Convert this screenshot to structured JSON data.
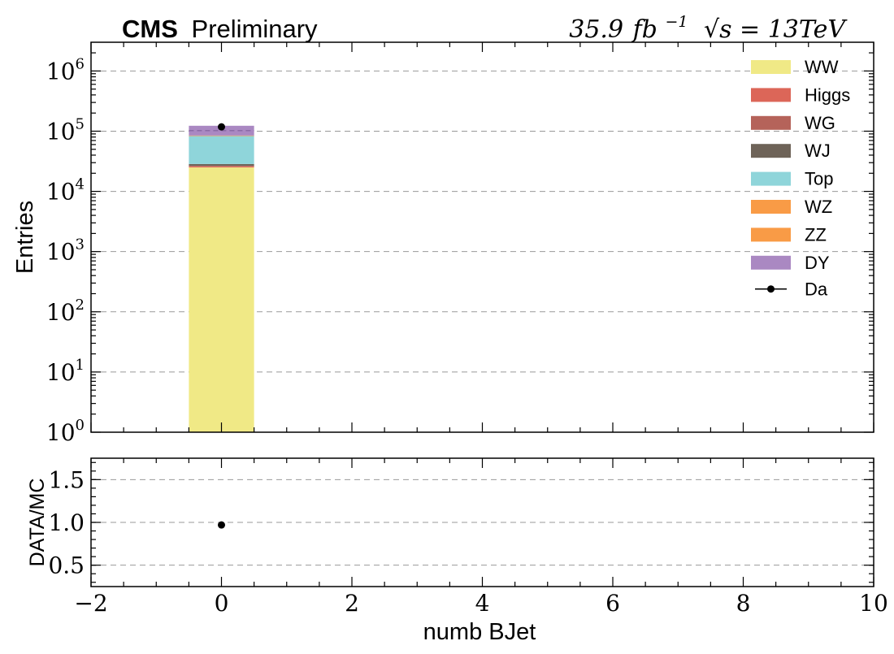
{
  "header": {
    "experiment": "CMS",
    "status": "Preliminary",
    "lumi_value": "35.9",
    "lumi_unit": "fb",
    "lumi_exp": "−1",
    "energy": "√s = 13TeV"
  },
  "colors": {
    "WW": "#f0e986",
    "Higgs": "#dc6658",
    "WG": "#b5635a",
    "WJ": "#6e6358",
    "Top": "#8fd5da",
    "WZ": "#f99b46",
    "ZZ": "#f99b46",
    "DY": "#aa88c2",
    "Da": "#000000"
  },
  "chart_data": [
    {
      "type": "bar",
      "stacked": true,
      "y_scale": "log",
      "ylabel": "Entries",
      "xlim": [
        -2,
        10
      ],
      "ylim": [
        1,
        3000000
      ],
      "y_ticks": [
        {
          "value": 1,
          "base": "10",
          "exp": "0"
        },
        {
          "value": 10,
          "base": "10",
          "exp": "1"
        },
        {
          "value": 100,
          "base": "10",
          "exp": "2"
        },
        {
          "value": 1000,
          "base": "10",
          "exp": "3"
        },
        {
          "value": 10000,
          "base": "10",
          "exp": "4"
        },
        {
          "value": 100000,
          "base": "10",
          "exp": "5"
        },
        {
          "value": 1000000,
          "base": "10",
          "exp": "6"
        }
      ],
      "grid": true,
      "legend_position": "top-right",
      "bin": {
        "low": -0.5,
        "high": 0.5
      },
      "series": [
        {
          "name": "WW",
          "values": [
            25000
          ]
        },
        {
          "name": "Higgs",
          "values": [
            1200
          ]
        },
        {
          "name": "WG",
          "values": [
            300
          ]
        },
        {
          "name": "WJ",
          "values": [
            2000
          ]
        },
        {
          "name": "Top",
          "values": [
            55000
          ]
        },
        {
          "name": "WZ",
          "values": [
            800
          ]
        },
        {
          "name": "ZZ",
          "values": [
            400
          ]
        },
        {
          "name": "DY",
          "values": [
            38300
          ]
        }
      ],
      "data_points": {
        "name": "Da",
        "x": [
          0
        ],
        "y": [
          118000
        ]
      }
    },
    {
      "type": "scatter",
      "ylabel": "DATA/MC",
      "xlabel": "numb BJet",
      "xlim": [
        -2,
        10
      ],
      "ylim": [
        0.25,
        1.75
      ],
      "x_ticks": [
        "−2",
        "0",
        "2",
        "4",
        "6",
        "8",
        "10"
      ],
      "y_ticks": [
        "0.5",
        "1.0",
        "1.5"
      ],
      "grid": true,
      "points": {
        "x": [
          0
        ],
        "y": [
          0.97
        ]
      }
    }
  ]
}
